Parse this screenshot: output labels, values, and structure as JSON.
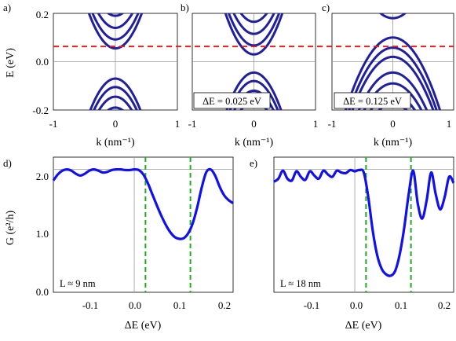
{
  "chart_data": [
    {
      "panel_label": "a)",
      "type": "line",
      "ylabel": "E (eV)",
      "xlabel": "k (nm⁻¹)",
      "xlim": [
        -1,
        1
      ],
      "ylim": [
        -0.2,
        0.2
      ],
      "x_ticks": [
        "-1",
        "0",
        "1"
      ],
      "y_ticks": [
        "0.2",
        "0.0",
        "-0.2"
      ],
      "fermi_level_eV": 0.063,
      "bands": {
        "type": "parabolic subbands",
        "curvature_eV_per_nm2": 0.8,
        "conduction_minima_eV": [
          0.055,
          0.092,
          0.14,
          0.19
        ],
        "valence_maxima_eV": [
          -0.07,
          -0.105,
          -0.145,
          -0.19
        ]
      },
      "line_color": "#1f1f9f",
      "reference_line_color": "#d62020"
    },
    {
      "panel_label": "b)",
      "type": "line",
      "xlabel": "k (nm⁻¹)",
      "xlim": [
        -1,
        1
      ],
      "ylim": [
        -0.2,
        0.2
      ],
      "x_ticks": [
        "-1",
        "0",
        "1"
      ],
      "fermi_level_eV": 0.063,
      "annotation": "ΔE = 0.025 eV",
      "bands": {
        "type": "parabolic subbands",
        "curvature_eV_per_nm2": 0.8,
        "conduction_minima_eV": [
          0.03,
          0.067,
          0.115,
          0.165
        ],
        "valence_maxima_eV": [
          -0.045,
          -0.08,
          -0.12,
          -0.165
        ]
      }
    },
    {
      "panel_label": "c)",
      "type": "line",
      "xlabel": "k (nm⁻¹)",
      "xlim": [
        -1,
        1
      ],
      "ylim": [
        -0.2,
        0.2
      ],
      "x_ticks": [
        "-1",
        "0",
        "1"
      ],
      "fermi_level_eV": 0.063,
      "annotation": "ΔE = 0.125 eV",
      "bands": {
        "type": "parabolic subbands",
        "curvature_eV_per_nm2": 0.5,
        "conduction_minima_eV": [
          0.18
        ],
        "valence_maxima_eV": [
          0.1,
          0.058,
          0.02,
          -0.045,
          -0.09,
          -0.135,
          -0.175
        ]
      }
    },
    {
      "panel_label": "d)",
      "type": "line",
      "ylabel": "G (e²/h)",
      "xlabel": "ΔE (eV)",
      "xlim": [
        -0.18,
        0.22
      ],
      "ylim": [
        0,
        2.2
      ],
      "x_ticks": [
        "-0.1",
        "0.0",
        "0.1",
        "0.2"
      ],
      "y_ticks": [
        "2.0",
        "1.0",
        "0.0"
      ],
      "annotation": "L ≈ 9 nm",
      "marker_lines_x": [
        0.025,
        0.125
      ],
      "marker_color": "#22aa22",
      "series": [
        {
          "x": [
            -0.18,
            -0.17,
            -0.16,
            -0.15,
            -0.14,
            -0.13,
            -0.12,
            -0.11,
            -0.1,
            -0.09,
            -0.08,
            -0.07,
            -0.06,
            -0.05,
            -0.04,
            -0.03,
            -0.02,
            -0.01,
            0.0,
            0.01,
            0.02,
            0.03,
            0.04,
            0.05,
            0.06,
            0.07,
            0.08,
            0.09,
            0.1,
            0.11,
            0.12,
            0.13,
            0.14,
            0.15,
            0.16,
            0.17,
            0.18,
            0.19,
            0.2,
            0.21,
            0.22
          ],
          "y": [
            1.82,
            1.92,
            1.98,
            2.0,
            1.98,
            1.93,
            1.9,
            1.93,
            1.98,
            2.0,
            1.98,
            1.95,
            1.96,
            1.99,
            2.0,
            2.0,
            1.99,
            1.99,
            2.0,
            1.99,
            1.92,
            1.78,
            1.6,
            1.42,
            1.25,
            1.1,
            0.98,
            0.9,
            0.87,
            0.88,
            0.96,
            1.12,
            1.38,
            1.7,
            1.95,
            2.0,
            1.9,
            1.72,
            1.58,
            1.5,
            1.45
          ]
        }
      ],
      "line_color": "#1010ee"
    },
    {
      "panel_label": "e)",
      "type": "line",
      "xlabel": "ΔE (eV)",
      "xlim": [
        -0.18,
        0.22
      ],
      "ylim": [
        0,
        2.2
      ],
      "x_ticks": [
        "-0.1",
        "0.0",
        "0.1",
        "0.2"
      ],
      "annotation": "L ≈ 18 nm",
      "marker_lines_x": [
        0.025,
        0.125
      ],
      "series": [
        {
          "x": [
            -0.18,
            -0.17,
            -0.16,
            -0.15,
            -0.14,
            -0.13,
            -0.12,
            -0.11,
            -0.1,
            -0.09,
            -0.08,
            -0.07,
            -0.06,
            -0.05,
            -0.04,
            -0.03,
            -0.02,
            -0.01,
            0.0,
            0.01,
            0.02,
            0.03,
            0.04,
            0.05,
            0.06,
            0.07,
            0.08,
            0.09,
            0.1,
            0.11,
            0.12,
            0.13,
            0.14,
            0.15,
            0.16,
            0.17,
            0.18,
            0.19,
            0.2,
            0.21,
            0.22
          ],
          "y": [
            1.8,
            1.85,
            1.98,
            1.85,
            1.82,
            1.97,
            1.88,
            1.83,
            1.97,
            1.9,
            1.85,
            1.98,
            1.92,
            1.88,
            1.98,
            1.95,
            1.94,
            1.99,
            1.97,
            1.99,
            1.95,
            1.55,
            1.0,
            0.6,
            0.38,
            0.29,
            0.27,
            0.35,
            0.62,
            1.05,
            1.6,
            1.98,
            1.45,
            1.2,
            1.5,
            1.95,
            1.6,
            1.35,
            1.55,
            1.88,
            1.78
          ]
        }
      ]
    }
  ]
}
